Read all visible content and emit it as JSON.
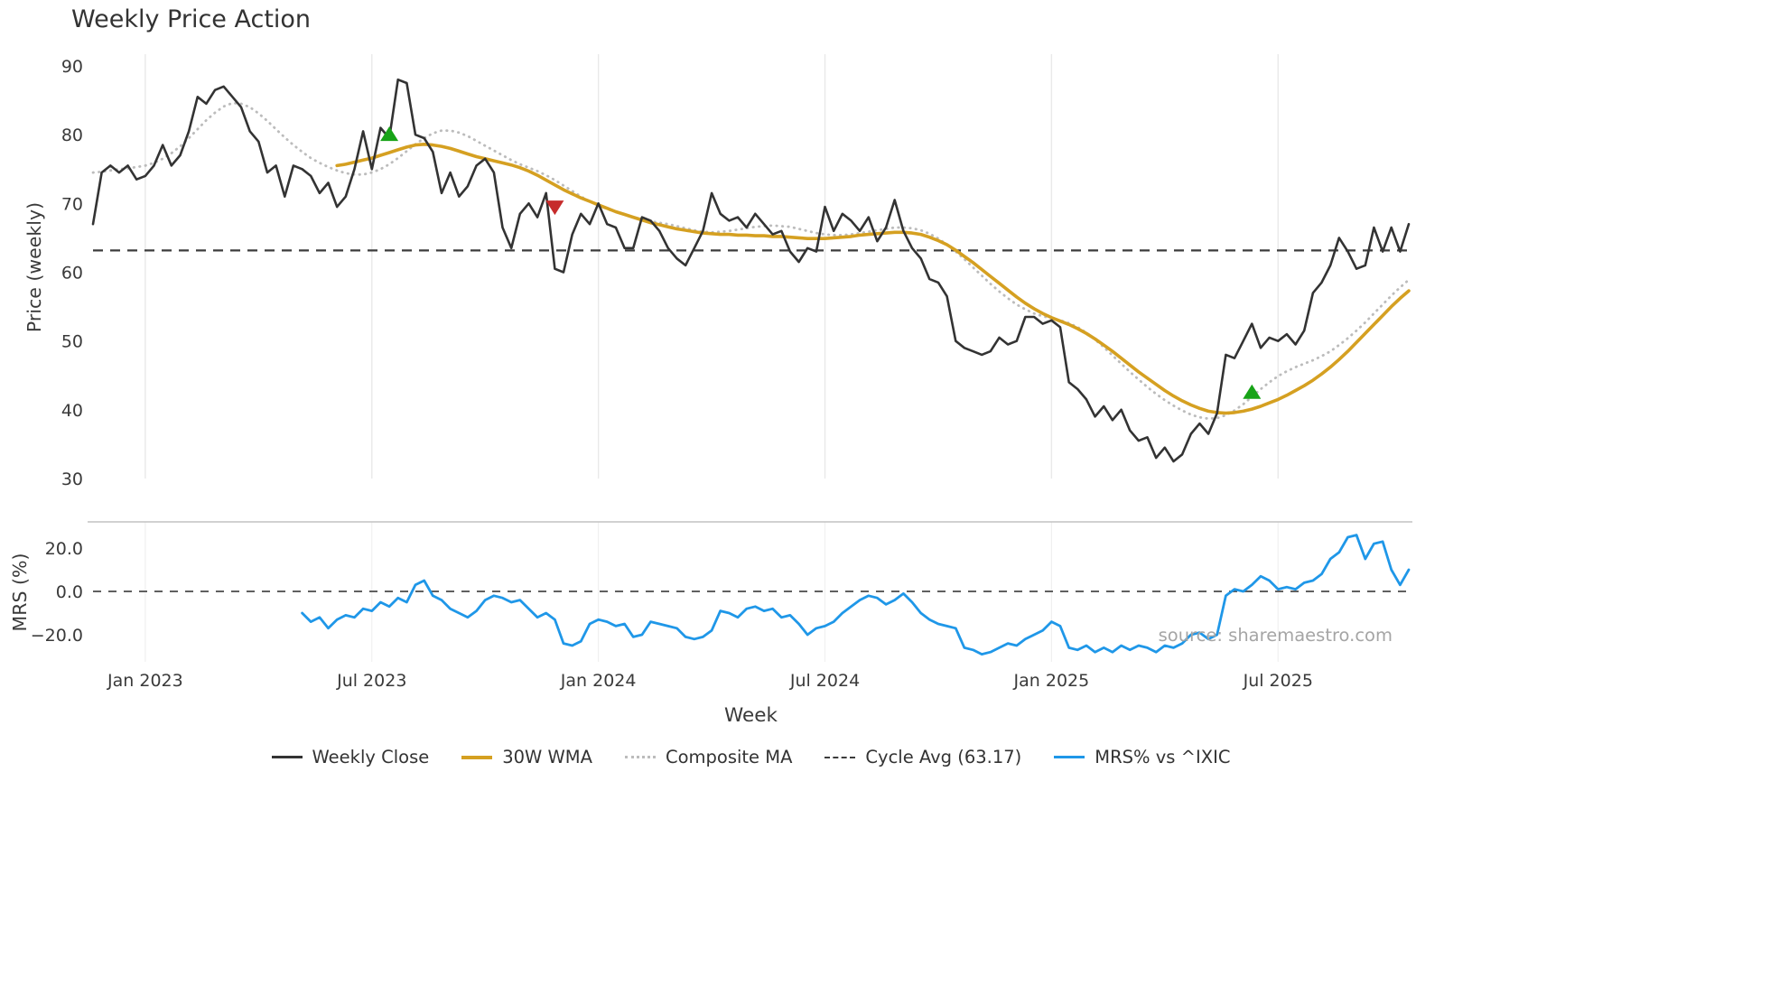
{
  "title": "Weekly Price Action",
  "source": "source: sharemaestro.com",
  "axes": {
    "price_label": "Price (weekly)",
    "mrs_label": "MRS (%)",
    "x_label": "Week",
    "price_ticks": [
      {
        "label": "90",
        "value": 90
      },
      {
        "label": "80",
        "value": 80
      },
      {
        "label": "70",
        "value": 70
      },
      {
        "label": "60",
        "value": 60
      },
      {
        "label": "50",
        "value": 50
      },
      {
        "label": "40",
        "value": 40
      },
      {
        "label": "30",
        "value": 30
      }
    ],
    "mrs_ticks": [
      {
        "label": "20.0",
        "value": 20
      },
      {
        "label": "0.0",
        "value": 0
      },
      {
        "label": "−20.0",
        "value": -20
      }
    ]
  },
  "legend": {
    "items": [
      {
        "label": "Weekly Close",
        "color": "#333333",
        "style": "solid",
        "width": 3.5
      },
      {
        "label": "30W WMA",
        "color": "#d5a021",
        "style": "solid",
        "width": 4
      },
      {
        "label": "Composite MA",
        "color": "#bcbcbc",
        "style": "dotted",
        "width": 3.5
      },
      {
        "label": "Cycle Avg (63.17)",
        "color": "#3c3c3c",
        "style": "dashed",
        "width": 2.5
      },
      {
        "label": "MRS% vs ^IXIC",
        "color": "#1f97e8",
        "style": "solid",
        "width": 3.5
      }
    ]
  },
  "chart_data": {
    "type": "line",
    "title": "Weekly Price Action",
    "xlabel": "Week",
    "ylabel_top": "Price (weekly)",
    "ylabel_bottom": "MRS (%)",
    "price_ylim": [
      30,
      90
    ],
    "mrs_ylim": [
      -33,
      32
    ],
    "grid": "vertical-only",
    "legend_position": "bottom",
    "cycle_avg": 63.17,
    "cycle_avg_color": "#3c3c3c",
    "mrs_zero_line": 0,
    "x_tick_labels": [
      "Jan 2023",
      "Jul 2023",
      "Jan 2024",
      "Jul 2024",
      "Jan 2025",
      "Jul 2025"
    ],
    "x_tick_indices": [
      6,
      32,
      58,
      84,
      110,
      136
    ],
    "markers": [
      {
        "index": 34,
        "value": 80,
        "direction": "up",
        "color": "#17a317"
      },
      {
        "index": 53,
        "value": 69.5,
        "direction": "down",
        "color": "#c62b2b"
      },
      {
        "index": 133,
        "value": 42.5,
        "direction": "up",
        "color": "#17a317"
      }
    ],
    "series": [
      {
        "name": "Weekly Close",
        "panel": "top",
        "color": "#333333",
        "width": 2.6,
        "values": [
          67,
          74.5,
          75.5,
          74.5,
          75.5,
          73.5,
          74,
          75.5,
          78.5,
          75.5,
          77,
          80.5,
          85.5,
          84.5,
          86.5,
          87,
          85.5,
          84,
          80.5,
          79,
          74.5,
          75.5,
          71,
          75.5,
          75,
          74,
          71.5,
          73,
          69.5,
          71,
          75,
          80.5,
          75,
          81,
          79.5,
          88,
          87.5,
          80,
          79.5,
          77.5,
          71.5,
          74.5,
          71,
          72.5,
          75.5,
          76.5,
          74.5,
          66.5,
          63.5,
          68.5,
          70,
          68,
          71.5,
          60.5,
          60,
          65.5,
          68.5,
          67,
          70,
          67,
          66.5,
          63.5,
          63.5,
          68,
          67.5,
          66,
          63.5,
          62,
          61,
          63.5,
          66,
          71.5,
          68.5,
          67.5,
          68,
          66.5,
          68.5,
          67,
          65.5,
          66,
          63,
          61.5,
          63.5,
          63,
          69.5,
          66,
          68.5,
          67.5,
          66,
          68,
          64.5,
          66.5,
          70.5,
          66,
          63.5,
          62,
          59,
          58.5,
          56.5,
          50,
          49,
          48.5,
          48,
          48.5,
          50.5,
          49.5,
          50,
          53.5,
          53.5,
          52.5,
          53,
          52,
          44,
          43,
          41.5,
          39,
          40.5,
          38.5,
          40,
          37,
          35.5,
          36,
          33,
          34.5,
          32.5,
          33.5,
          36.5,
          38,
          36.5,
          39.5,
          48,
          47.5,
          50,
          52.5,
          49,
          50.5,
          50,
          51,
          49.5,
          51.5,
          57,
          58.5,
          61,
          65,
          63,
          60.5,
          61,
          66.5,
          63,
          66.5,
          63,
          67
        ]
      },
      {
        "name": "30W WMA",
        "panel": "top",
        "color": "#d5a021",
        "width": 3.6,
        "values": [
          null,
          null,
          null,
          null,
          null,
          null,
          null,
          null,
          null,
          null,
          null,
          null,
          null,
          null,
          null,
          null,
          null,
          null,
          null,
          null,
          null,
          null,
          null,
          null,
          null,
          null,
          null,
          null,
          75.5,
          75.7,
          76,
          76.3,
          76.6,
          77,
          77.4,
          77.8,
          78.2,
          78.5,
          78.6,
          78.5,
          78.3,
          78,
          77.6,
          77.2,
          76.8,
          76.5,
          76.2,
          75.9,
          75.6,
          75.2,
          74.7,
          74.1,
          73.4,
          72.7,
          72,
          71.4,
          70.8,
          70.3,
          69.8,
          69.3,
          68.8,
          68.4,
          68,
          67.6,
          67.2,
          66.9,
          66.6,
          66.3,
          66.1,
          65.9,
          65.7,
          65.6,
          65.5,
          65.5,
          65.4,
          65.4,
          65.3,
          65.3,
          65.2,
          65.2,
          65.1,
          65,
          64.9,
          64.9,
          64.9,
          65,
          65.1,
          65.2,
          65.4,
          65.5,
          65.6,
          65.7,
          65.8,
          65.8,
          65.7,
          65.5,
          65.1,
          64.6,
          64,
          63.2,
          62.3,
          61.4,
          60.4,
          59.4,
          58.4,
          57.4,
          56.4,
          55.5,
          54.7,
          54,
          53.4,
          52.9,
          52.4,
          51.8,
          51.1,
          50.3,
          49.4,
          48.5,
          47.5,
          46.5,
          45.5,
          44.6,
          43.7,
          42.8,
          42,
          41.3,
          40.7,
          40.2,
          39.8,
          39.6,
          39.5,
          39.6,
          39.8,
          40.1,
          40.5,
          41,
          41.5,
          42.1,
          42.8,
          43.5,
          44.3,
          45.2,
          46.2,
          47.3,
          48.5,
          49.8,
          51.1,
          52.4,
          53.7,
          55,
          56.2,
          57.3
        ]
      },
      {
        "name": "Composite MA",
        "panel": "top",
        "color": "#bcbcbc",
        "width": 2.8,
        "dash": "0.5 6",
        "values": [
          74.5,
          74.6,
          74.8,
          75,
          75.1,
          75.3,
          75.5,
          75.9,
          76.5,
          77.3,
          78.3,
          79.5,
          80.8,
          82.1,
          83.2,
          84.1,
          84.6,
          84.5,
          84,
          83.1,
          82,
          80.8,
          79.6,
          78.5,
          77.5,
          76.6,
          75.9,
          75.3,
          74.8,
          74.4,
          74.2,
          74.2,
          74.5,
          75,
          75.7,
          76.6,
          77.6,
          78.6,
          79.5,
          80.2,
          80.6,
          80.6,
          80.3,
          79.8,
          79.1,
          78.4,
          77.7,
          77,
          76.3,
          75.7,
          75.2,
          74.7,
          74.1,
          73.4,
          72.6,
          71.8,
          71,
          70.3,
          69.7,
          69.2,
          68.8,
          68.4,
          68,
          67.7,
          67.4,
          67.2,
          67,
          66.7,
          66.4,
          66.1,
          65.9,
          65.8,
          65.9,
          66,
          66.2,
          66.4,
          66.6,
          66.7,
          66.8,
          66.7,
          66.6,
          66.3,
          66,
          65.7,
          65.5,
          65.4,
          65.4,
          65.5,
          65.7,
          65.9,
          66.1,
          66.3,
          66.5,
          66.5,
          66.4,
          66.1,
          65.6,
          64.9,
          64,
          63,
          61.9,
          60.7,
          59.5,
          58.3,
          57.2,
          56.2,
          55.3,
          54.6,
          54,
          53.6,
          53.3,
          53,
          52.6,
          52,
          51.2,
          50.2,
          49.1,
          47.9,
          46.7,
          45.5,
          44.4,
          43.3,
          42.3,
          41.4,
          40.6,
          39.9,
          39.3,
          38.9,
          38.7,
          38.8,
          39.2,
          39.9,
          40.8,
          41.9,
          43,
          44,
          44.9,
          45.6,
          46.2,
          46.7,
          47.2,
          47.8,
          48.5,
          49.4,
          50.4,
          51.5,
          52.7,
          54,
          55.3,
          56.6,
          57.8,
          58.9
        ]
      },
      {
        "name": "MRS% vs ^IXIC",
        "panel": "bottom",
        "color": "#1f97e8",
        "width": 2.8,
        "values": [
          null,
          null,
          null,
          null,
          null,
          null,
          null,
          null,
          null,
          null,
          null,
          null,
          null,
          null,
          null,
          null,
          null,
          null,
          null,
          null,
          null,
          null,
          null,
          null,
          -10,
          -14,
          -12,
          -17,
          -13,
          -11,
          -12,
          -8,
          -9,
          -5,
          -7,
          -3,
          -5,
          3,
          5,
          -2,
          -4,
          -8,
          -10,
          -12,
          -9,
          -4,
          -2,
          -3,
          -5,
          -4,
          -8,
          -12,
          -10,
          -13,
          -24,
          -25,
          -23,
          -15,
          -13,
          -14,
          -16,
          -15,
          -21,
          -20,
          -14,
          -15,
          -16,
          -17,
          -21,
          -22,
          -21,
          -18,
          -9,
          -10,
          -12,
          -8,
          -7,
          -9,
          -8,
          -12,
          -11,
          -15,
          -20,
          -17,
          -16,
          -14,
          -10,
          -7,
          -4,
          -2,
          -3,
          -6,
          -4,
          -1,
          -5,
          -10,
          -13,
          -15,
          -16,
          -17,
          -26,
          -27,
          -29,
          -28,
          -26,
          -24,
          -25,
          -22,
          -20,
          -18,
          -14,
          -16,
          -26,
          -27,
          -25,
          -28,
          -26,
          -28,
          -25,
          -27,
          -25,
          -26,
          -28,
          -25,
          -26,
          -24,
          -20,
          -19,
          -22,
          -20,
          -2,
          1,
          0,
          3,
          7,
          5,
          1,
          2,
          1,
          4,
          5,
          8,
          15,
          18,
          25,
          26,
          15,
          22,
          23,
          10,
          3,
          10
        ]
      }
    ]
  }
}
